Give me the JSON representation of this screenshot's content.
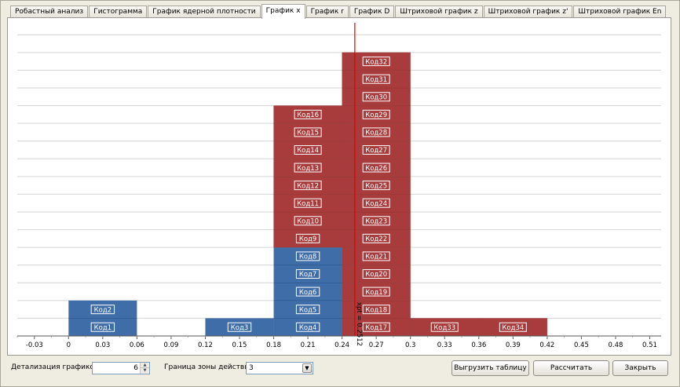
{
  "tabs": [
    {
      "label": "Робастный анализ",
      "active": false
    },
    {
      "label": "Гистограмма",
      "active": false
    },
    {
      "label": "График ядерной плотности",
      "active": false
    },
    {
      "label": "График x",
      "active": true
    },
    {
      "label": "График r",
      "active": false
    },
    {
      "label": "График D",
      "active": false
    },
    {
      "label": "Штриховой график z",
      "active": false
    },
    {
      "label": "Штриховой график z'",
      "active": false
    },
    {
      "label": "Штриховой график En",
      "active": false
    }
  ],
  "chart_data": {
    "type": "bar",
    "title": "",
    "xlabel": "",
    "ylabel": "",
    "xlim": [
      -0.045,
      0.52
    ],
    "ylim": [
      0,
      17.5
    ],
    "grid": true,
    "x_ticks": [
      "-0.03",
      "0",
      "0.03",
      "0.06",
      "0.09",
      "0.12",
      "0.15",
      "0.18",
      "0.21",
      "0.24",
      "0.27",
      "0.3",
      "0.33",
      "0.36",
      "0.39",
      "0.42",
      "0.45",
      "0.48",
      "0.51"
    ],
    "reference_line": {
      "x": 0.2512,
      "label": "xpt = 0.2512",
      "color": "#e00000"
    },
    "colors": {
      "blue": "#3e6da8",
      "red": "#a83c3c"
    },
    "series": [
      {
        "bins": [
          {
            "from": 0,
            "to": 0.06,
            "items": [
              {
                "label": "Код1",
                "color": "blue"
              },
              {
                "label": "Код2",
                "color": "blue"
              }
            ]
          },
          {
            "from": 0.12,
            "to": 0.18,
            "items": [
              {
                "label": "Код3",
                "color": "blue"
              }
            ]
          },
          {
            "from": 0.18,
            "to": 0.24,
            "items": [
              {
                "label": "Код4",
                "color": "blue"
              },
              {
                "label": "Код5",
                "color": "blue"
              },
              {
                "label": "Код6",
                "color": "blue"
              },
              {
                "label": "Код7",
                "color": "blue"
              },
              {
                "label": "Код8",
                "color": "blue"
              },
              {
                "label": "Код9",
                "color": "red"
              },
              {
                "label": "Код10",
                "color": "red"
              },
              {
                "label": "Код11",
                "color": "red"
              },
              {
                "label": "Код12",
                "color": "red"
              },
              {
                "label": "Код13",
                "color": "red"
              },
              {
                "label": "Код14",
                "color": "red"
              },
              {
                "label": "Код15",
                "color": "red"
              },
              {
                "label": "Код16",
                "color": "red"
              }
            ]
          },
          {
            "from": 0.24,
            "to": 0.3,
            "items": [
              {
                "label": "Код17",
                "color": "red"
              },
              {
                "label": "Код18",
                "color": "red"
              },
              {
                "label": "Код19",
                "color": "red"
              },
              {
                "label": "Код20",
                "color": "red"
              },
              {
                "label": "Код21",
                "color": "red"
              },
              {
                "label": "Код22",
                "color": "red"
              },
              {
                "label": "Код23",
                "color": "red"
              },
              {
                "label": "Код24",
                "color": "red"
              },
              {
                "label": "Код25",
                "color": "red"
              },
              {
                "label": "Код26",
                "color": "red"
              },
              {
                "label": "Код27",
                "color": "red"
              },
              {
                "label": "Код28",
                "color": "red"
              },
              {
                "label": "Код29",
                "color": "red"
              },
              {
                "label": "Код30",
                "color": "red"
              },
              {
                "label": "Код31",
                "color": "red"
              },
              {
                "label": "Код32",
                "color": "red"
              }
            ]
          },
          {
            "from": 0.3,
            "to": 0.36,
            "items": [
              {
                "label": "Код33",
                "color": "red"
              }
            ]
          },
          {
            "from": 0.36,
            "to": 0.42,
            "items": [
              {
                "label": "Код34",
                "color": "red"
              }
            ]
          }
        ]
      }
    ]
  },
  "footer": {
    "detail_label": "Детализация графиков:",
    "detail_value": "6",
    "spin_up_icon": "▲",
    "spin_down_icon": "▼",
    "zone_label": "Граница зоны действия:",
    "zone_value": "3",
    "dropdown_icon": "▼",
    "export_button": "Выгрузить таблицу",
    "calc_button": "Рассчитать",
    "close_button": "Закрыть"
  }
}
